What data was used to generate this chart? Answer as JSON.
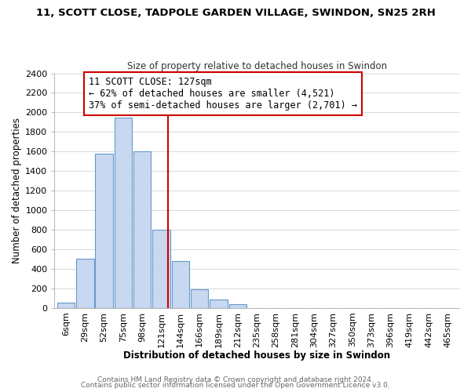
{
  "title": "11, SCOTT CLOSE, TADPOLE GARDEN VILLAGE, SWINDON, SN25 2RH",
  "subtitle": "Size of property relative to detached houses in Swindon",
  "xlabel": "Distribution of detached houses by size in Swindon",
  "ylabel": "Number of detached properties",
  "bar_labels": [
    "6sqm",
    "29sqm",
    "52sqm",
    "75sqm",
    "98sqm",
    "121sqm",
    "144sqm",
    "166sqm",
    "189sqm",
    "212sqm",
    "235sqm",
    "258sqm",
    "281sqm",
    "304sqm",
    "327sqm",
    "350sqm",
    "373sqm",
    "396sqm",
    "419sqm",
    "442sqm",
    "465sqm"
  ],
  "bar_values": [
    55,
    500,
    1580,
    1950,
    1600,
    800,
    480,
    190,
    90,
    35,
    0,
    0,
    0,
    0,
    0,
    0,
    0,
    0,
    0,
    0,
    0
  ],
  "bar_color": "#c8d8f0",
  "bar_edgecolor": "#6699cc",
  "vline_x_index": 5.35,
  "vline_color": "#cc0000",
  "annotation_line1": "11 SCOTT CLOSE: 127sqm",
  "annotation_line2": "← 62% of detached houses are smaller (4,521)",
  "annotation_line3": "37% of semi-detached houses are larger (2,701) →",
  "annotation_box_edgecolor": "#cc0000",
  "ylim": [
    0,
    2400
  ],
  "yticks": [
    0,
    200,
    400,
    600,
    800,
    1000,
    1200,
    1400,
    1600,
    1800,
    2000,
    2200,
    2400
  ],
  "footer1": "Contains HM Land Registry data © Crown copyright and database right 2024.",
  "footer2": "Contains public sector information licensed under the Open Government Licence v3.0.",
  "background_color": "#ffffff",
  "grid_color": "#d8d8d8",
  "title_fontsize": 9.5,
  "subtitle_fontsize": 8.5,
  "axis_label_fontsize": 8.5,
  "tick_fontsize": 8,
  "annotation_fontsize": 8.5,
  "footer_fontsize": 6.5
}
